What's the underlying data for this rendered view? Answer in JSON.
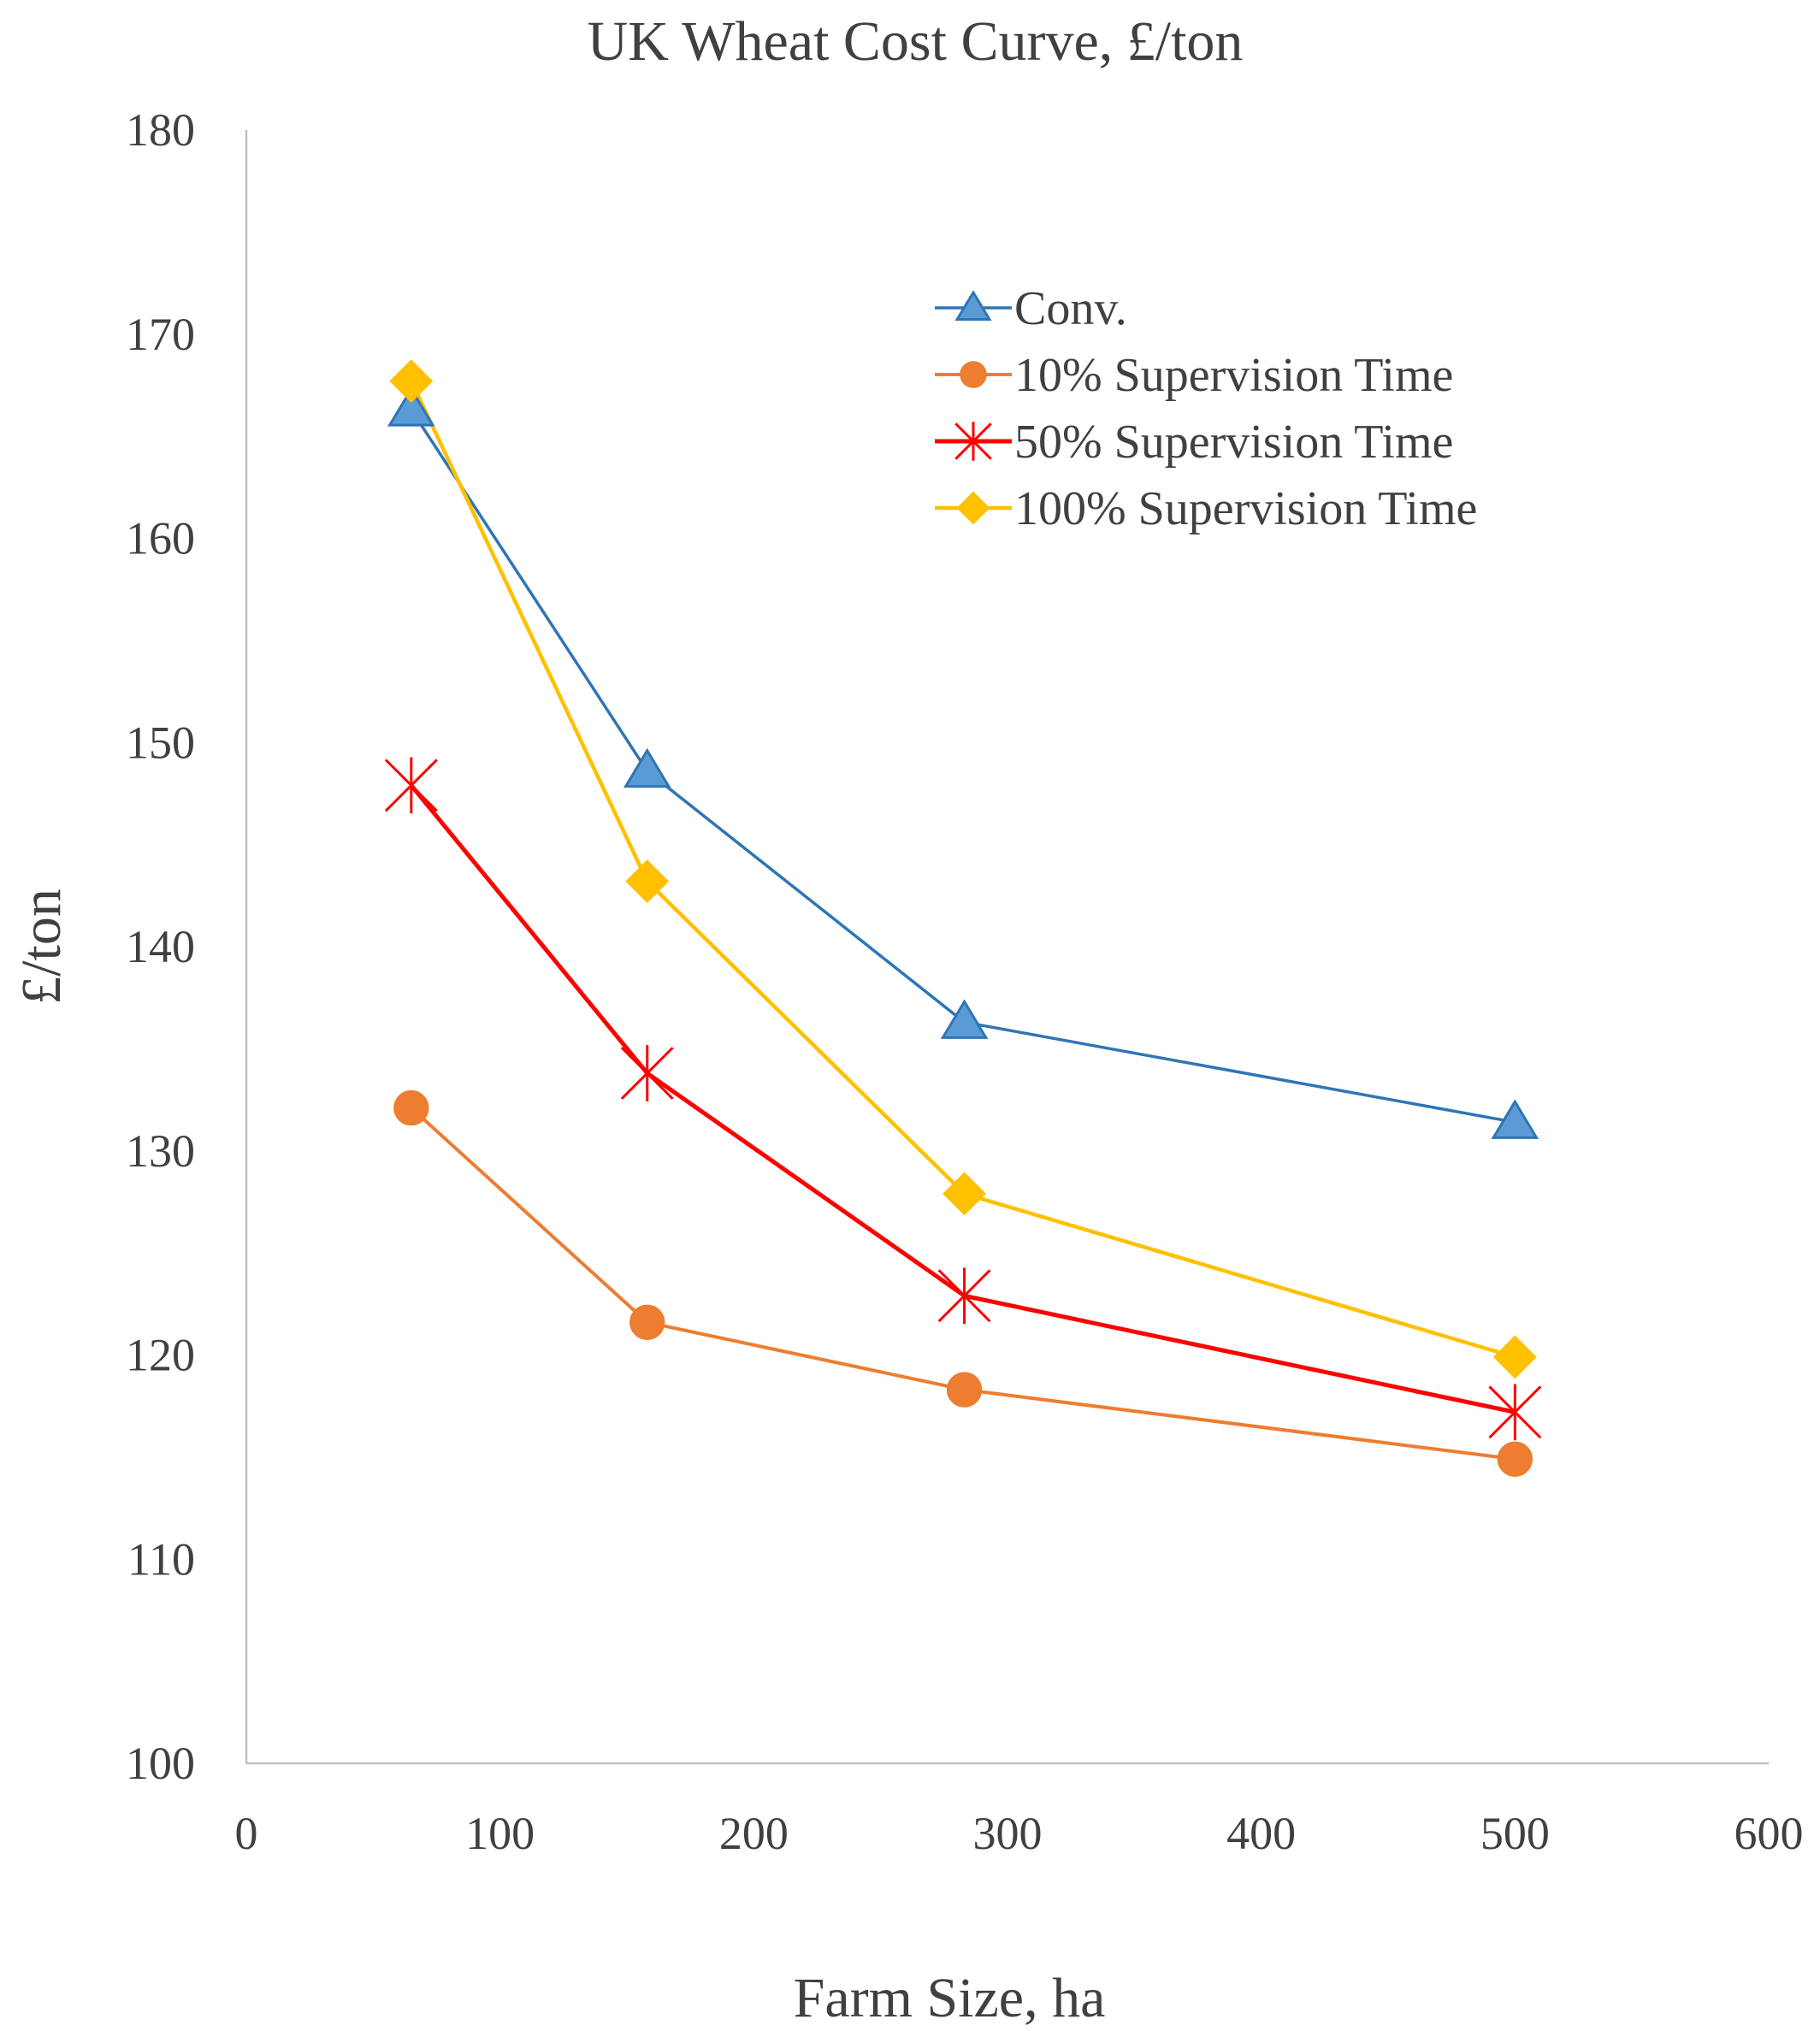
{
  "chart_data": {
    "type": "line",
    "title": "UK Wheat Cost Curve, £/ton",
    "xlabel": "Farm Size, ha",
    "ylabel": "£/ton",
    "xlim": [
      0,
      600
    ],
    "ylim": [
      100,
      180
    ],
    "x_ticks": [
      "0",
      "100",
      "200",
      "300",
      "400",
      "500",
      "600"
    ],
    "y_ticks": [
      "100",
      "110",
      "120",
      "130",
      "140",
      "150",
      "160",
      "170",
      "180"
    ],
    "grid": false,
    "legend_position": "top-right",
    "series": [
      {
        "name": "Conv.",
        "color": "#2E75B6",
        "marker": "triangle",
        "x": [
          65,
          158,
          283,
          500
        ],
        "y": [
          166.3,
          148.6,
          136.3,
          131.4
        ]
      },
      {
        "name": "10% Supervision Time",
        "color": "#ED7D31",
        "marker": "circle",
        "x": [
          65,
          158,
          283,
          500
        ],
        "y": [
          132.1,
          121.6,
          118.3,
          114.9
        ]
      },
      {
        "name": "50% Supervision Time",
        "color": "#FF0000",
        "marker": "asterisk",
        "x": [
          65,
          158,
          283,
          500
        ],
        "y": [
          147.9,
          133.8,
          122.9,
          117.2
        ]
      },
      {
        "name": "100% Supervision Time",
        "color": "#FFC000",
        "marker": "diamond",
        "x": [
          65,
          158,
          283,
          500
        ],
        "y": [
          167.7,
          143.2,
          127.9,
          119.9
        ]
      }
    ]
  }
}
